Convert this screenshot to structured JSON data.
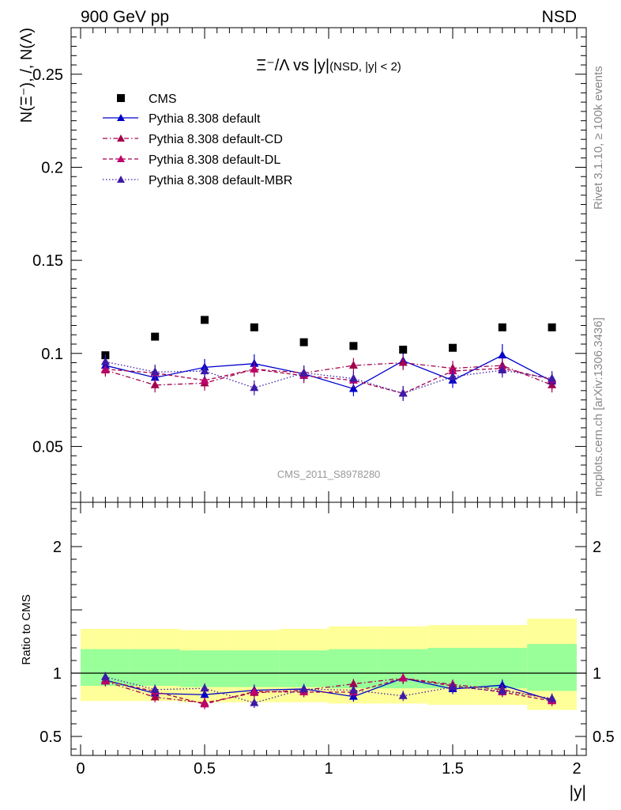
{
  "header": {
    "left": "900 GeV pp",
    "right": "NSD"
  },
  "side_text": {
    "rivet": "Rivet 3.1.10, ≥ 100k events",
    "mcplots": "mcplots.cern.ch [arXiv:1306.3436]"
  },
  "watermark": "CMS_2011_S8978280",
  "colors": {
    "cms": "#000000",
    "default": "#0000cc",
    "cd": "#a3004d",
    "dl": "#a3004d",
    "mbr": "#3d1aa8",
    "band_inner": "#99ff99",
    "band_outer": "#ffff99"
  },
  "chart_data": [
    {
      "type": "scatter",
      "title_main": "Ξ⁻/Λ vs |y|",
      "title_sub": "(NSD, |y| < 2)",
      "ylabel": "N(Ξ⁻), /, N(Λ)",
      "xlim": [
        0,
        2
      ],
      "ylim": [
        0.02,
        0.275
      ],
      "y_ticks": [
        "0.05",
        "0.1",
        "0.15",
        "0.2",
        "0.25"
      ],
      "x": [
        0.1,
        0.3,
        0.5,
        0.7,
        0.9,
        1.1,
        1.3,
        1.5,
        1.7,
        1.9
      ],
      "series": [
        {
          "name": "CMS",
          "style": "marker",
          "values": [
            0.099,
            0.109,
            0.118,
            0.114,
            0.106,
            0.104,
            0.102,
            0.103,
            0.114,
            0.114
          ]
        },
        {
          "name": "Pythia 8.308 default",
          "style": "solid",
          "values": [
            0.0935,
            0.087,
            0.0925,
            0.0945,
            0.089,
            0.081,
            0.096,
            0.0855,
            0.099,
            0.085
          ],
          "errors": [
            0.0035,
            0.0035,
            0.0045,
            0.005,
            0.004,
            0.004,
            0.004,
            0.004,
            0.006,
            0.0045
          ]
        },
        {
          "name": "Pythia 8.308 default-CD",
          "style": "dashdot",
          "values": [
            0.091,
            0.083,
            0.084,
            0.0915,
            0.0895,
            0.0935,
            0.095,
            0.092,
            0.0935,
            0.083
          ],
          "errors": [
            0.0035,
            0.004,
            0.004,
            0.004,
            0.004,
            0.004,
            0.004,
            0.004,
            0.004,
            0.004
          ]
        },
        {
          "name": "Pythia 8.308 default-DL",
          "style": "dashed",
          "values": [
            0.0915,
            0.0895,
            0.0855,
            0.0915,
            0.088,
            0.0855,
            0.0785,
            0.0905,
            0.092,
            0.086
          ],
          "errors": [
            0.0035,
            0.004,
            0.004,
            0.004,
            0.004,
            0.004,
            0.004,
            0.004,
            0.004,
            0.004
          ]
        },
        {
          "name": "Pythia 8.308 default-MBR",
          "style": "dotted",
          "values": [
            0.0955,
            0.09,
            0.0905,
            0.0815,
            0.0895,
            0.0865,
            0.0785,
            0.0875,
            0.091,
            0.0865
          ],
          "errors": [
            0.004,
            0.004,
            0.004,
            0.004,
            0.004,
            0.004,
            0.004,
            0.004,
            0.004,
            0.004
          ]
        }
      ]
    },
    {
      "type": "scatter",
      "ylabel": "Ratio to CMS",
      "xlabel": "|y|",
      "xlim": [
        0,
        2
      ],
      "ylim": [
        0.35,
        2.35
      ],
      "y_ticks": [
        "0.5",
        "1",
        "2"
      ],
      "x_ticks": [
        "0",
        "0.5",
        "1",
        "1.5",
        "2"
      ],
      "band_edges": [
        0.0,
        0.2,
        0.4,
        0.6,
        0.8,
        1.0,
        1.2,
        1.4,
        1.6,
        1.8,
        2.0
      ],
      "band_inner": [
        [
          0.9,
          1.19
        ],
        [
          0.9,
          1.19
        ],
        [
          0.89,
          1.18
        ],
        [
          0.89,
          1.18
        ],
        [
          0.89,
          1.18
        ],
        [
          0.88,
          1.19
        ],
        [
          0.88,
          1.19
        ],
        [
          0.88,
          1.2
        ],
        [
          0.88,
          1.2
        ],
        [
          0.86,
          1.23
        ]
      ],
      "band_outer": [
        [
          0.78,
          1.35
        ],
        [
          0.78,
          1.35
        ],
        [
          0.77,
          1.34
        ],
        [
          0.77,
          1.34
        ],
        [
          0.77,
          1.35
        ],
        [
          0.76,
          1.37
        ],
        [
          0.76,
          1.37
        ],
        [
          0.75,
          1.38
        ],
        [
          0.75,
          1.38
        ],
        [
          0.71,
          1.43
        ]
      ],
      "series": [
        {
          "name": "Pythia 8.308 default",
          "values": [
            0.945,
            0.84,
            0.83,
            0.865,
            0.875,
            0.815,
            0.96,
            0.875,
            0.905,
            0.785
          ],
          "errors": [
            0.04,
            0.04,
            0.04,
            0.045,
            0.04,
            0.04,
            0.045,
            0.04,
            0.045,
            0.04
          ]
        },
        {
          "name": "Pythia 8.308 default-CD",
          "values": [
            0.935,
            0.81,
            0.765,
            0.845,
            0.865,
            0.915,
            0.96,
            0.91,
            0.87,
            0.795
          ],
          "errors": [
            0.04,
            0.04,
            0.04,
            0.04,
            0.04,
            0.04,
            0.04,
            0.04,
            0.04,
            0.04
          ]
        },
        {
          "name": "Pythia 8.308 default-DL",
          "values": [
            0.94,
            0.855,
            0.755,
            0.855,
            0.85,
            0.85,
            0.96,
            0.9,
            0.85,
            0.78
          ],
          "errors": [
            0.04,
            0.04,
            0.04,
            0.04,
            0.04,
            0.04,
            0.04,
            0.04,
            0.04,
            0.04
          ]
        },
        {
          "name": "Pythia 8.308 default-MBR",
          "values": [
            0.97,
            0.87,
            0.88,
            0.765,
            0.875,
            0.865,
            0.82,
            0.89,
            0.86,
            0.8
          ],
          "errors": [
            0.04,
            0.04,
            0.04,
            0.04,
            0.04,
            0.04,
            0.04,
            0.04,
            0.04,
            0.04
          ]
        }
      ]
    }
  ]
}
